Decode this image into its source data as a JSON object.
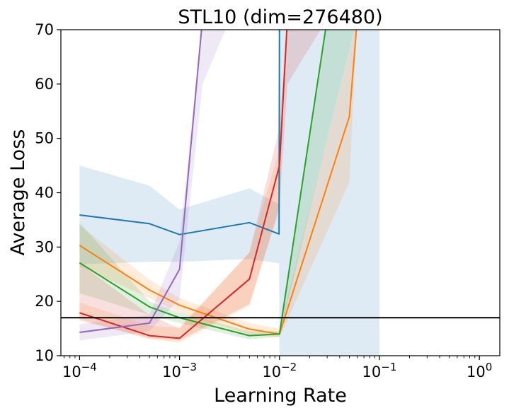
{
  "chart_data": {
    "type": "line",
    "title": "STL10 (dim=276480)",
    "xlabel": "Learning Rate",
    "ylabel": "Average Loss",
    "xscale": "log",
    "xlim": [
      6.5e-05,
      1.6
    ],
    "ylim": [
      10,
      70
    ],
    "grid": false,
    "legend": "none",
    "x_ticks": [
      {
        "base": "10",
        "exp": "−4",
        "value": 0.0001
      },
      {
        "base": "10",
        "exp": "−3",
        "value": 0.001
      },
      {
        "base": "10",
        "exp": "−2",
        "value": 0.01
      },
      {
        "base": "10",
        "exp": "−1",
        "value": 0.1
      },
      {
        "base": "10",
        "exp": "0",
        "value": 1
      }
    ],
    "y_ticks": [
      "10",
      "20",
      "30",
      "40",
      "50",
      "60",
      "70"
    ],
    "reference_line": {
      "y": 17.0,
      "color": "#000000"
    },
    "series": [
      {
        "name": "blue",
        "color": "#1f77b4",
        "x": [
          0.0001,
          0.0005,
          0.001,
          0.005,
          0.0099,
          0.01,
          0.01
        ],
        "values": [
          35.9,
          34.3,
          32.3,
          34.5,
          32.4,
          72.0,
          72.0
        ],
        "band_x": [
          0.0001,
          0.0005,
          0.001,
          0.005,
          0.0099,
          0.01,
          0.1
        ],
        "band_lower": [
          26.8,
          27.3,
          27.3,
          27.8,
          27.0,
          10.0,
          10.0
        ],
        "band_upper": [
          45.0,
          41.3,
          36.9,
          40.8,
          37.9,
          75.0,
          75.0
        ],
        "band_color": "#1f77b4"
      },
      {
        "name": "orange",
        "color": "#ff7f0e",
        "x": [
          0.0001,
          0.0005,
          0.001,
          0.005,
          0.01,
          0.05,
          0.06
        ],
        "values": [
          30.3,
          22.1,
          19.3,
          14.9,
          14.0,
          54.0,
          72.0
        ],
        "band_x": [
          0.0001,
          0.0005,
          0.001,
          0.005,
          0.01,
          0.05,
          0.06
        ],
        "band_lower": [
          26.5,
          20.6,
          17.9,
          13.9,
          13.3,
          42.0,
          72.0
        ],
        "band_upper": [
          34.0,
          24.0,
          20.6,
          16.0,
          15.0,
          66.0,
          72.0
        ],
        "band_color": "#ff7f0e"
      },
      {
        "name": "green",
        "color": "#2ca02c",
        "x": [
          0.0001,
          0.0005,
          0.001,
          0.005,
          0.01,
          0.03
        ],
        "values": [
          27.1,
          19.0,
          17.0,
          13.7,
          14.0,
          72.0
        ],
        "band_x": [
          0.0001,
          0.0005,
          0.001,
          0.005,
          0.01,
          0.03,
          0.06
        ],
        "band_lower": [
          21.5,
          17.5,
          16.0,
          13.0,
          13.5,
          50.0,
          72.0
        ],
        "band_upper": [
          34.5,
          20.0,
          17.9,
          14.5,
          14.5,
          72.0,
          72.0
        ],
        "band_color": "#2ca02c"
      },
      {
        "name": "red",
        "color": "#d62728",
        "x": [
          0.0001,
          0.0005,
          0.001,
          0.005,
          0.01,
          0.012
        ],
        "values": [
          17.9,
          13.7,
          13.2,
          24.1,
          45.0,
          72.0
        ],
        "band_x": [
          0.0001,
          0.0005,
          0.001,
          0.005,
          0.01,
          0.012,
          0.03
        ],
        "band_lower": [
          16.5,
          13.2,
          12.8,
          19.5,
          37.0,
          60.0,
          72.0
        ],
        "band_upper": [
          27.0,
          17.5,
          15.0,
          29.0,
          52.0,
          72.0,
          72.0
        ],
        "band_color": "#d62728"
      },
      {
        "name": "purple",
        "color": "#9467bd",
        "x": [
          0.0001,
          0.0005,
          0.001,
          0.0017,
          0.0025
        ],
        "values": [
          14.3,
          16.0,
          25.9,
          72.0,
          72.0
        ],
        "band_x": [
          0.0001,
          0.0005,
          0.001,
          0.0017,
          0.0032
        ],
        "band_lower": [
          12.8,
          14.5,
          20.5,
          60.0,
          72.0
        ],
        "band_upper": [
          15.8,
          17.5,
          31.0,
          72.0,
          72.0
        ],
        "band_color": "#9467bd"
      },
      {
        "name": "orange-lower-band",
        "color": "#ff7f0e",
        "x": [],
        "values": [],
        "band_x": [
          0.0001,
          0.0005,
          0.001,
          0.005,
          0.01,
          0.0115
        ],
        "band_lower": [
          16.8,
          13.0,
          12.4,
          19.2,
          37.5,
          72.0
        ],
        "band_upper": [
          19.8,
          15.5,
          15.2,
          29.0,
          48.0,
          72.0
        ],
        "band_color": "#ff7f0e"
      }
    ]
  }
}
